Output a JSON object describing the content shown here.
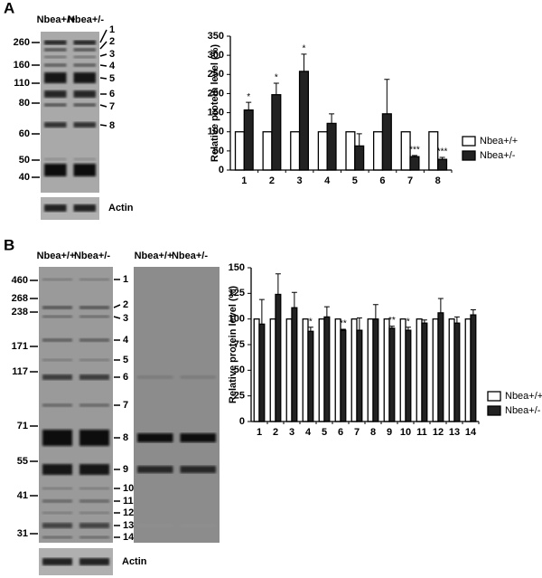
{
  "panel_labels": [
    "A",
    "B"
  ],
  "blots": [
    {
      "lanes": [
        "Nbea+/+",
        "Nbea+/-"
      ],
      "markers": [
        260,
        160,
        110,
        80,
        60,
        50,
        40
      ],
      "bands": [
        "1",
        "2",
        "3",
        "4",
        "5",
        "6",
        "7",
        "8"
      ],
      "loading_control": "Actin"
    },
    {
      "lanes": [
        "Nbea+/+",
        "Nbea+/-"
      ],
      "markers": [
        460,
        268,
        238,
        171,
        117,
        71,
        55,
        41,
        31
      ],
      "bands": [
        "1",
        "2",
        "3",
        "4",
        "5",
        "6",
        "7",
        "8",
        "9",
        "10",
        "11",
        "12",
        "13",
        "14"
      ],
      "loading_control": "Actin"
    },
    {
      "lanes": [
        "Nbea+/+",
        "Nbea+/-"
      ]
    }
  ],
  "chart_data": [
    {
      "type": "bar",
      "ylabel": "Relative protein level (%)",
      "categories": [
        "1",
        "2",
        "3",
        "4",
        "5",
        "6",
        "7",
        "8"
      ],
      "series": [
        {
          "name": "Nbea+/+",
          "color": "#ffffff",
          "values": [
            100,
            100,
            100,
            100,
            100,
            100,
            100,
            100
          ]
        },
        {
          "name": "Nbea+/-",
          "color": "#222222",
          "values": [
            157,
            197,
            258,
            122,
            63,
            147,
            35,
            28
          ],
          "errors": [
            20,
            30,
            45,
            25,
            32,
            90,
            3,
            5
          ]
        }
      ],
      "significance": [
        "*",
        "*",
        "*",
        null,
        null,
        null,
        "***",
        "***"
      ],
      "ylim": [
        0,
        350
      ],
      "yticks": [
        0,
        50,
        100,
        150,
        200,
        250,
        300,
        350
      ],
      "legend": "lower right"
    },
    {
      "type": "bar",
      "ylabel": "Relative protein level (%)",
      "categories": [
        "1",
        "2",
        "3",
        "4",
        "5",
        "6",
        "7",
        "8",
        "9",
        "10",
        "11",
        "12",
        "13",
        "14"
      ],
      "series": [
        {
          "name": "Nbea+/+",
          "color": "#ffffff",
          "values": [
            100,
            100,
            100,
            100,
            100,
            100,
            100,
            100,
            100,
            100,
            100,
            100,
            100,
            100
          ]
        },
        {
          "name": "Nbea+/-",
          "color": "#222222",
          "values": [
            95,
            124,
            111,
            88,
            102,
            89,
            89,
            100,
            91,
            89,
            96,
            106,
            96,
            104
          ],
          "errors": [
            24,
            20,
            15,
            4,
            10,
            1,
            12,
            14,
            2,
            3,
            3,
            14,
            6,
            5
          ]
        }
      ],
      "significance": [
        null,
        null,
        null,
        "*",
        null,
        "**",
        null,
        null,
        "**",
        "*",
        null,
        null,
        null,
        null
      ],
      "ylim": [
        0,
        150
      ],
      "yticks": [
        0,
        25,
        50,
        75,
        100,
        125,
        150
      ],
      "legend": "lower right"
    }
  ]
}
